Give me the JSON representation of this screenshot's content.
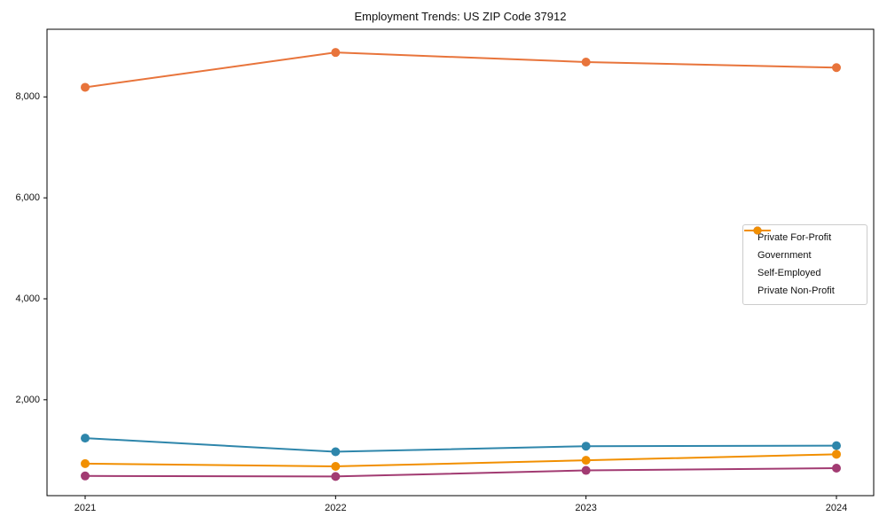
{
  "chart_data": {
    "type": "line",
    "title": "Employment Trends: US ZIP Code 37912",
    "xlabel": "",
    "ylabel": "",
    "x": [
      2021,
      2022,
      2023,
      2024
    ],
    "series": [
      {
        "name": "Private For-Profit",
        "color": "#E8743B",
        "values": [
          8190,
          8880,
          8690,
          8580
        ]
      },
      {
        "name": "Government",
        "color": "#2E86AB",
        "values": [
          1240,
          970,
          1080,
          1090
        ]
      },
      {
        "name": "Self-Employed",
        "color": "#A23B72",
        "values": [
          490,
          480,
          600,
          645
        ]
      },
      {
        "name": "Private Non-Profit",
        "color": "#F18F01",
        "values": [
          735,
          680,
          800,
          920
        ]
      }
    ],
    "y_ticks": [
      2000,
      4000,
      6000,
      8000
    ],
    "y_tick_labels": [
      "2,000",
      "4,000",
      "6,000",
      "8,000"
    ],
    "ylim": [
      100,
      9340
    ],
    "grid": false,
    "legend_position": "center-right",
    "marker": "circle",
    "axis_color": "#000000"
  }
}
